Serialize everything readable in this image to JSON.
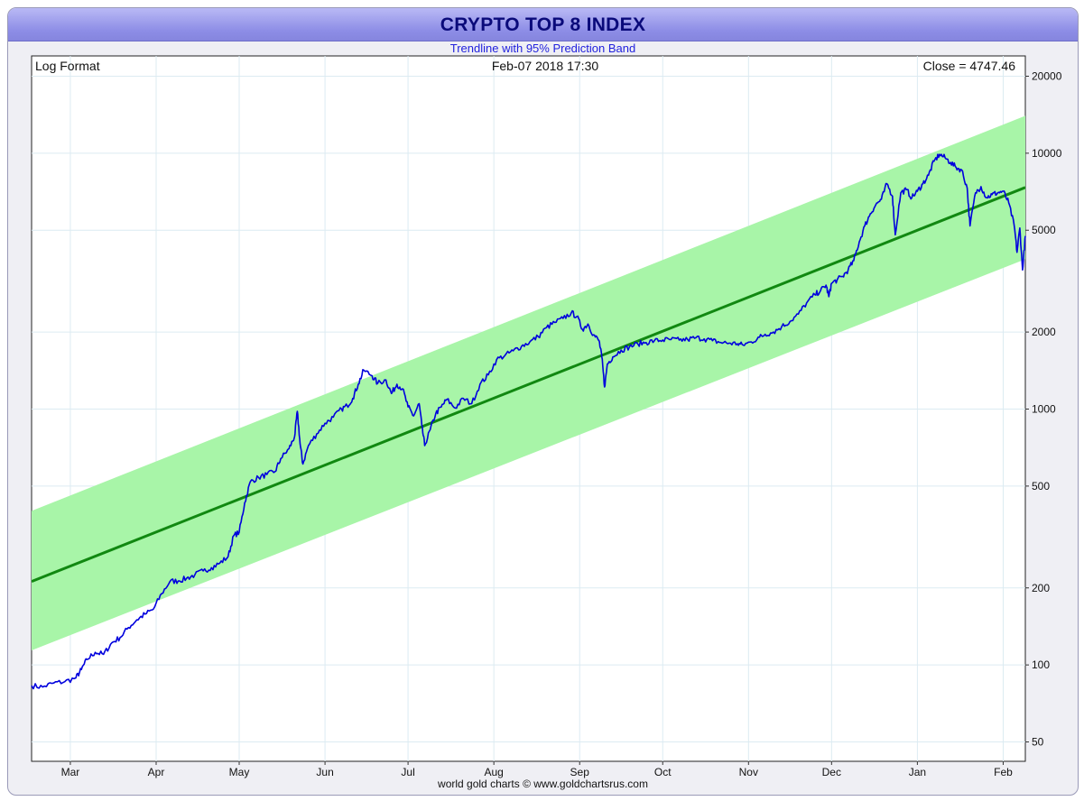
{
  "window": {
    "title": "CRYPTO TOP 8 INDEX",
    "subtitle": "Trendline with 95% Prediction Band",
    "footer": "world gold charts © www.goldchartsrus.com"
  },
  "chart_data": {
    "type": "line",
    "title": "CRYPTO TOP 8 INDEX",
    "subtitle": "Trendline with 95% Prediction Band",
    "scale": "log",
    "annotations": {
      "top_left": "Log Format",
      "top_center": "Feb-07  2018 17:30",
      "top_right": "Close = 4747.46"
    },
    "x_ticks": [
      "Mar",
      "Apr",
      "May",
      "Jun",
      "Jul",
      "Aug",
      "Sep",
      "Oct",
      "Nov",
      "Dec",
      "Jan",
      "Feb"
    ],
    "x_tick_days": [
      14,
      45,
      75,
      106,
      136,
      167,
      198,
      228,
      259,
      289,
      320,
      351
    ],
    "x_range_days": [
      0,
      359
    ],
    "y_ticks": [
      50,
      100,
      200,
      500,
      1000,
      2000,
      5000,
      10000,
      20000
    ],
    "ylim": [
      42,
      24000
    ],
    "grid": true,
    "series": [
      {
        "name": "Index",
        "color": "#0000dd",
        "points": [
          [
            0,
            83
          ],
          [
            4,
            82
          ],
          [
            8,
            85
          ],
          [
            12,
            86
          ],
          [
            16,
            89
          ],
          [
            18,
            96
          ],
          [
            20,
            105
          ],
          [
            23,
            112
          ],
          [
            26,
            110
          ],
          [
            29,
            122
          ],
          [
            32,
            128
          ],
          [
            35,
            140
          ],
          [
            38,
            150
          ],
          [
            41,
            158
          ],
          [
            44,
            165
          ],
          [
            47,
            190
          ],
          [
            50,
            212
          ],
          [
            53,
            213
          ],
          [
            56,
            218
          ],
          [
            59,
            225
          ],
          [
            62,
            233
          ],
          [
            65,
            240
          ],
          [
            68,
            250
          ],
          [
            71,
            265
          ],
          [
            73,
            320
          ],
          [
            75,
            330
          ],
          [
            77,
            430
          ],
          [
            79,
            520
          ],
          [
            82,
            540
          ],
          [
            85,
            555
          ],
          [
            88,
            570
          ],
          [
            90,
            640
          ],
          [
            93,
            700
          ],
          [
            95,
            780
          ],
          [
            96,
            980
          ],
          [
            97,
            730
          ],
          [
            98,
            610
          ],
          [
            100,
            720
          ],
          [
            103,
            800
          ],
          [
            106,
            880
          ],
          [
            109,
            930
          ],
          [
            112,
            1000
          ],
          [
            114,
            1030
          ],
          [
            116,
            1100
          ],
          [
            118,
            1250
          ],
          [
            120,
            1420
          ],
          [
            123,
            1350
          ],
          [
            125,
            1260
          ],
          [
            128,
            1300
          ],
          [
            130,
            1150
          ],
          [
            132,
            1250
          ],
          [
            134,
            1200
          ],
          [
            136,
            1020
          ],
          [
            138,
            940
          ],
          [
            140,
            1050
          ],
          [
            141,
            860
          ],
          [
            142,
            720
          ],
          [
            144,
            830
          ],
          [
            146,
            960
          ],
          [
            148,
            1020
          ],
          [
            150,
            1090
          ],
          [
            153,
            1010
          ],
          [
            156,
            1100
          ],
          [
            159,
            1050
          ],
          [
            162,
            1250
          ],
          [
            165,
            1360
          ],
          [
            168,
            1560
          ],
          [
            171,
            1620
          ],
          [
            174,
            1690
          ],
          [
            177,
            1760
          ],
          [
            180,
            1830
          ],
          [
            183,
            1920
          ],
          [
            186,
            2080
          ],
          [
            189,
            2180
          ],
          [
            192,
            2260
          ],
          [
            195,
            2380
          ],
          [
            197,
            2300
          ],
          [
            199,
            2050
          ],
          [
            201,
            2150
          ],
          [
            203,
            1950
          ],
          [
            205,
            1850
          ],
          [
            206,
            1600
          ],
          [
            207,
            1220
          ],
          [
            208,
            1500
          ],
          [
            210,
            1600
          ],
          [
            213,
            1700
          ],
          [
            216,
            1750
          ],
          [
            219,
            1800
          ],
          [
            222,
            1820
          ],
          [
            225,
            1850
          ],
          [
            228,
            1860
          ],
          [
            231,
            1870
          ],
          [
            234,
            1860
          ],
          [
            237,
            1870
          ],
          [
            240,
            1900
          ],
          [
            243,
            1880
          ],
          [
            246,
            1850
          ],
          [
            249,
            1820
          ],
          [
            252,
            1810
          ],
          [
            255,
            1800
          ],
          [
            257,
            1780
          ],
          [
            260,
            1830
          ],
          [
            263,
            1910
          ],
          [
            265,
            1960
          ],
          [
            268,
            2000
          ],
          [
            271,
            2100
          ],
          [
            274,
            2200
          ],
          [
            277,
            2350
          ],
          [
            280,
            2600
          ],
          [
            283,
            2800
          ],
          [
            285,
            2900
          ],
          [
            287,
            3050
          ],
          [
            288,
            2750
          ],
          [
            289,
            3100
          ],
          [
            291,
            3200
          ],
          [
            293,
            3300
          ],
          [
            295,
            3500
          ],
          [
            297,
            3800
          ],
          [
            299,
            4500
          ],
          [
            301,
            5200
          ],
          [
            303,
            5800
          ],
          [
            305,
            6300
          ],
          [
            307,
            6600
          ],
          [
            309,
            7600
          ],
          [
            311,
            6800
          ],
          [
            312,
            4800
          ],
          [
            314,
            7000
          ],
          [
            316,
            7200
          ],
          [
            318,
            6700
          ],
          [
            320,
            7100
          ],
          [
            322,
            7600
          ],
          [
            324,
            8200
          ],
          [
            326,
            9300
          ],
          [
            328,
            9900
          ],
          [
            330,
            9600
          ],
          [
            332,
            9200
          ],
          [
            334,
            8800
          ],
          [
            336,
            8600
          ],
          [
            338,
            7300
          ],
          [
            339,
            5200
          ],
          [
            341,
            7000
          ],
          [
            343,
            7400
          ],
          [
            345,
            6700
          ],
          [
            347,
            6900
          ],
          [
            349,
            7000
          ],
          [
            351,
            7100
          ],
          [
            353,
            6400
          ],
          [
            355,
            5200
          ],
          [
            356,
            4100
          ],
          [
            357,
            5100
          ],
          [
            358,
            3500
          ],
          [
            359,
            4747
          ]
        ]
      },
      {
        "name": "Trendline",
        "color": "#118811",
        "points": [
          [
            0,
            212
          ],
          [
            359,
            7350
          ]
        ]
      }
    ],
    "band": {
      "name": "95% Prediction Band",
      "color": "#a8f5a8",
      "upper": [
        [
          0,
          400
        ],
        [
          359,
          14000
        ]
      ],
      "lower": [
        [
          0,
          114
        ],
        [
          359,
          3850
        ]
      ]
    }
  }
}
